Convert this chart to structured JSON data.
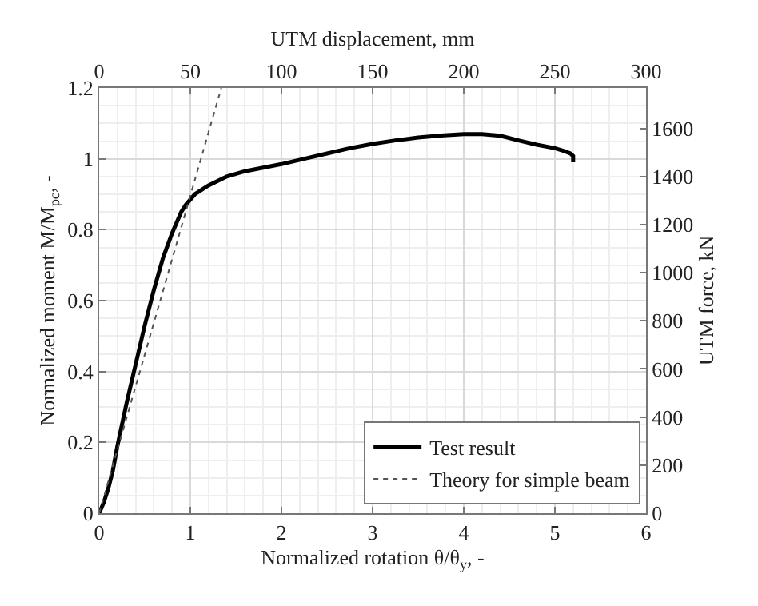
{
  "chart_data": {
    "type": "line",
    "xlabel": "Normalized rotation θ/θ$_{y}$, -",
    "ylabel": "Normalized moment M/M$_{pc}$, -",
    "x2label": "UTM displacement, mm",
    "y2label": "UTM force, kN",
    "xlim": [
      0,
      6
    ],
    "xticks": [
      0,
      1,
      2,
      3,
      4,
      5,
      6
    ],
    "ylim": [
      0,
      1.2
    ],
    "yticks": [
      0,
      0.2,
      0.4,
      0.6,
      0.8,
      1,
      1.2
    ],
    "x2lim": [
      0,
      300
    ],
    "x2ticks": [
      0,
      50,
      100,
      150,
      200,
      250,
      300
    ],
    "y2lim": [
      0,
      1768
    ],
    "y2ticks": [
      0,
      200,
      400,
      600,
      800,
      1000,
      1200,
      1400,
      1600
    ],
    "grid": true,
    "legend": "bottom right",
    "marker": "none",
    "series": [
      {
        "name": "Test result",
        "color": "#000000",
        "line_style": "solid",
        "x": [
          0,
          0.05,
          0.1,
          0.15,
          0.2,
          0.3,
          0.4,
          0.5,
          0.6,
          0.7,
          0.8,
          0.9,
          0.95,
          1.05,
          1.2,
          1.4,
          1.6,
          1.8,
          2,
          2.25,
          2.5,
          2.75,
          3,
          3.25,
          3.5,
          3.75,
          4,
          4.2,
          4.4,
          4.6,
          4.8,
          5,
          5.1,
          5.17,
          5.2,
          5.2
        ],
        "values": [
          0,
          0.03,
          0.07,
          0.12,
          0.19,
          0.31,
          0.42,
          0.53,
          0.63,
          0.72,
          0.79,
          0.85,
          0.87,
          0.9,
          0.925,
          0.95,
          0.965,
          0.975,
          0.985,
          1.0,
          1.015,
          1.03,
          1.042,
          1.052,
          1.06,
          1.066,
          1.07,
          1.07,
          1.065,
          1.052,
          1.04,
          1.03,
          1.022,
          1.015,
          1.008,
          0.99
        ]
      },
      {
        "name": "Theory for simple beam",
        "color": "#555555",
        "line_style": "dotted",
        "x": [
          0,
          1.34
        ],
        "values": [
          0,
          1.2
        ]
      }
    ]
  }
}
